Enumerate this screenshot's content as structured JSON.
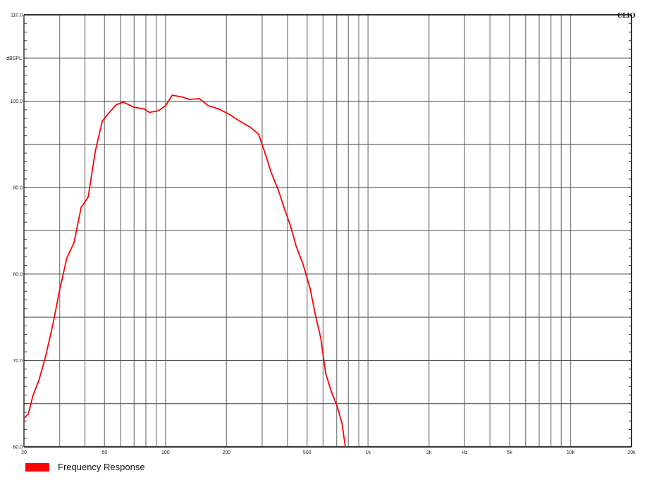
{
  "chart_data": {
    "type": "line",
    "xscale": "log",
    "xlim": [
      20,
      20000
    ],
    "ylim": [
      60,
      110
    ],
    "grid": true,
    "ylabel": "dBSPL",
    "xlabel": "Hz",
    "y_ticks": [
      {
        "value": 110,
        "label": "110.0"
      },
      {
        "value": 100,
        "label": "100.0"
      },
      {
        "value": 90,
        "label": "90.0"
      },
      {
        "value": 80,
        "label": "80.0"
      },
      {
        "value": 70,
        "label": "70.0"
      },
      {
        "value": 60,
        "label": "60.0"
      }
    ],
    "x_ticks": [
      {
        "value": 20,
        "label": "20"
      },
      {
        "value": 50,
        "label": "50"
      },
      {
        "value": 100,
        "label": "100"
      },
      {
        "value": 200,
        "label": "200"
      },
      {
        "value": 500,
        "label": "500"
      },
      {
        "value": 1000,
        "label": "1k"
      },
      {
        "value": 2000,
        "label": "2k"
      },
      {
        "value": 3000,
        "label": "Hz"
      },
      {
        "value": 5000,
        "label": "5k"
      },
      {
        "value": 10000,
        "label": "10k"
      },
      {
        "value": 20000,
        "label": "20k"
      }
    ],
    "legend": {
      "placement": "bottom-left"
    },
    "series": [
      {
        "name": "Frequency Response",
        "color": "#ff0000",
        "x": [
          20,
          21,
          22.2,
          23.7,
          25.6,
          27.8,
          30.1,
          32.6,
          35.3,
          38.3,
          41.5,
          45,
          48.7,
          52.8,
          57.2,
          61.9,
          69.8,
          78.7,
          83.3,
          92.4,
          100.2,
          108,
          120,
          132,
          147,
          162,
          183,
          206,
          232,
          262,
          288,
          308,
          333,
          361,
          391,
          414,
          442,
          478,
          518,
          548,
          584,
          618,
          659,
          702,
          743,
          773
        ],
        "y": [
          63.3,
          63.8,
          66.0,
          67.7,
          70.5,
          74.2,
          78.3,
          81.9,
          83.6,
          87.7,
          88.9,
          94.2,
          97.7,
          98.7,
          99.6,
          99.9,
          99.3,
          99.1,
          98.7,
          98.9,
          99.5,
          100.7,
          100.5,
          100.2,
          100.3,
          99.5,
          99.1,
          98.5,
          97.7,
          97.0,
          96.2,
          94.2,
          91.7,
          89.7,
          87.2,
          85.6,
          83.2,
          81.1,
          78.3,
          75.4,
          72.6,
          68.5,
          66.4,
          64.8,
          62.8,
          60.0
        ]
      }
    ]
  },
  "logo": "CLIO"
}
